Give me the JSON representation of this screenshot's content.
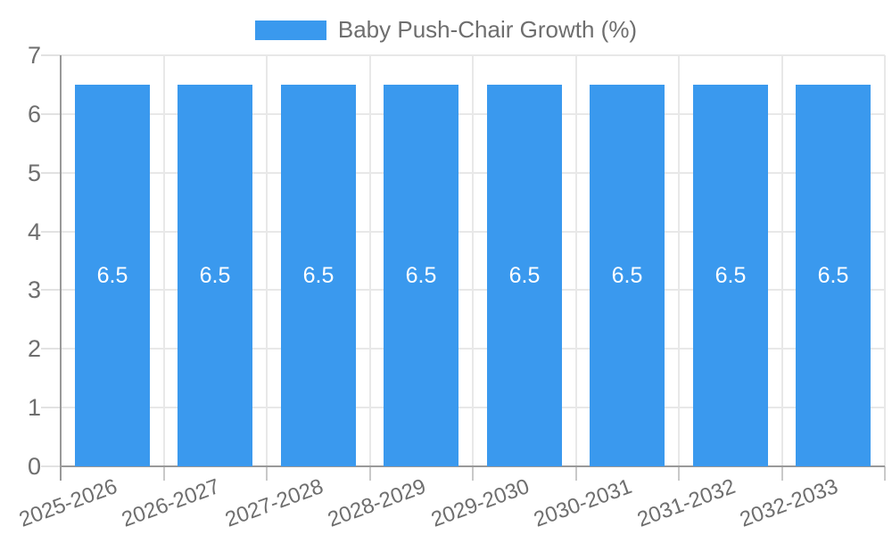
{
  "legend": {
    "label": "Baby Push-Chair Growth (%)"
  },
  "chart_data": {
    "type": "bar",
    "title": "Baby Push-Chair Growth (%)",
    "categories": [
      "2025-2026",
      "2026-2027",
      "2027-2028",
      "2028-2029",
      "2029-2030",
      "2030-2031",
      "2031-2032",
      "2032-2033"
    ],
    "values": [
      6.5,
      6.5,
      6.5,
      6.5,
      6.5,
      6.5,
      6.5,
      6.5
    ],
    "bar_labels": [
      "6.5",
      "6.5",
      "6.5",
      "6.5",
      "6.5",
      "6.5",
      "6.5",
      "6.5"
    ],
    "xlabel": "",
    "ylabel": "",
    "ylim": [
      0,
      7
    ],
    "y_ticks": [
      0,
      1,
      2,
      3,
      4,
      5,
      6,
      7
    ],
    "grid": true,
    "legend_position": "top-center",
    "colors": {
      "bar": "#3a99ee",
      "bar_label_text": "#ffffff",
      "axis_text": "#6e6e6e",
      "grid_line": "#e8e8e8",
      "axis_line": "#999999",
      "y_tick_line": "#e2e2e2",
      "x_tick_line": "#c9c9c9"
    }
  }
}
